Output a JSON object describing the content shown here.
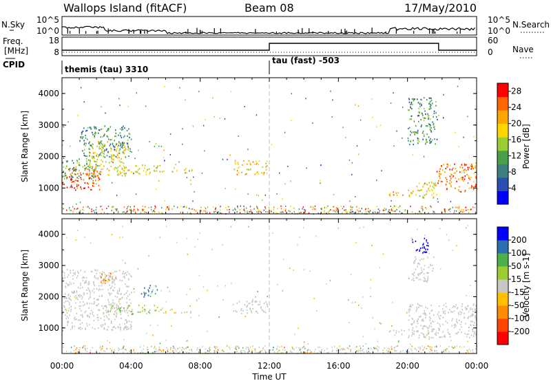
{
  "header": {
    "station": "Wallops Island (fitACF)",
    "beam": "Beam 08",
    "date": "17/May/2010"
  },
  "noise_panel": {
    "left_label": "N.Sky",
    "right_label": "N.Search",
    "left_ticks": [
      "10^5",
      "10^0"
    ],
    "right_ticks": [
      "10^5",
      "10^0"
    ]
  },
  "freq_panel": {
    "left_label_1": "Freq.",
    "left_label_2": "[MHz]",
    "right_label": "Nave",
    "left_ticks": [
      "18",
      "8"
    ],
    "right_ticks": [
      "60",
      "0"
    ]
  },
  "cpid_panel": {
    "label": "CPID",
    "modes": [
      {
        "name": "themis (tau) 3310",
        "start_hour": 0,
        "end_hour": 12
      },
      {
        "name": "tau (fast) -503",
        "start_hour": 12,
        "end_hour": 24
      }
    ],
    "freq_low_mhz": 10,
    "freq_high_mhz": 14,
    "freq_switch_hours": [
      12,
      21.8
    ]
  },
  "chart_data": [
    {
      "type": "heatmap",
      "name": "power",
      "ylabel": "Slant Range [km]",
      "xlabel": "Time UT",
      "xlim_hours": [
        0,
        24
      ],
      "ylim_km": [
        180,
        4500
      ],
      "x_ticks": [
        "00:00",
        "04:00",
        "08:00",
        "12:00",
        "16:00",
        "20:00",
        "00:00"
      ],
      "y_ticks": [
        1000,
        2000,
        3000,
        4000
      ],
      "colorbar": {
        "label": "Power [dB]",
        "ticks": [
          "4",
          "8",
          "12",
          "16",
          "20",
          "24",
          "28"
        ],
        "range": [
          0,
          30
        ],
        "colors": [
          "#0000ff",
          "#2a4fb0",
          "#3c7f7f",
          "#4aa04a",
          "#9acd32",
          "#ffd700",
          "#ffa500",
          "#ff6600",
          "#ff0000"
        ]
      },
      "echo_regions": [
        {
          "t0": 0.0,
          "t1": 2.2,
          "r0": 950,
          "r1": 1700,
          "value": 26
        },
        {
          "t0": 0.0,
          "t1": 2.0,
          "r0": 1300,
          "r1": 2000,
          "value": 12
        },
        {
          "t0": 1.5,
          "t1": 3.8,
          "r0": 1400,
          "r1": 2500,
          "value": 18
        },
        {
          "t0": 1.0,
          "t1": 4.0,
          "r0": 2000,
          "r1": 3000,
          "value": 10
        },
        {
          "t0": 3.2,
          "t1": 6.0,
          "r0": 1450,
          "r1": 1750,
          "value": 18
        },
        {
          "t0": 6.2,
          "t1": 7.5,
          "r0": 1500,
          "r1": 1650,
          "value": 16
        },
        {
          "t0": 9.9,
          "t1": 11.9,
          "r0": 1450,
          "r1": 1900,
          "value": 20
        },
        {
          "t0": 18.9,
          "t1": 19.8,
          "r0": 750,
          "r1": 950,
          "value": 22
        },
        {
          "t0": 20.0,
          "t1": 21.7,
          "r0": 700,
          "r1": 1200,
          "value": 18
        },
        {
          "t0": 20.0,
          "t1": 21.7,
          "r0": 2400,
          "r1": 3900,
          "value": 10
        },
        {
          "t0": 21.6,
          "t1": 24.0,
          "r0": 900,
          "r1": 1800,
          "value": 24
        }
      ]
    },
    {
      "type": "heatmap",
      "name": "velocity",
      "ylabel": "Slant Range [km]",
      "xlabel": "Time UT",
      "xlim_hours": [
        0,
        24
      ],
      "ylim_km": [
        180,
        4500
      ],
      "x_ticks": [
        "00:00",
        "04:00",
        "08:00",
        "12:00",
        "16:00",
        "20:00",
        "00:00"
      ],
      "y_ticks": [
        1000,
        2000,
        3000,
        4000
      ],
      "colorbar": {
        "label": "Velocity [m s-1]",
        "ticks": [
          "200",
          "100",
          "50",
          "15",
          "-15",
          "-50",
          "-100",
          "-200"
        ],
        "range": [
          -250,
          250
        ],
        "ground_scatter_color": "#c8c8c0",
        "colors": [
          "#ff0000",
          "#ff4500",
          "#ff8c00",
          "#ffc000",
          "#c8c8c0",
          "#9acd32",
          "#4ab04a",
          "#2a6fb0",
          "#0000ff"
        ]
      },
      "echo_regions": [
        {
          "t0": 0.0,
          "t1": 4.0,
          "r0": 950,
          "r1": 2900,
          "value": "gs"
        },
        {
          "t0": 2.5,
          "t1": 5.5,
          "r0": 1450,
          "r1": 1750,
          "value": 60
        },
        {
          "t0": 5.5,
          "t1": 7.5,
          "r0": 1500,
          "r1": 1650,
          "value": -40
        },
        {
          "t0": 4.5,
          "t1": 5.5,
          "r0": 2000,
          "r1": 2400,
          "value": 150
        },
        {
          "t0": 2.2,
          "t1": 2.8,
          "r0": 2400,
          "r1": 2800,
          "value": -120
        },
        {
          "t0": 9.9,
          "t1": 11.9,
          "r0": 1450,
          "r1": 1900,
          "value": "gs"
        },
        {
          "t0": 18.9,
          "t1": 19.8,
          "r0": 750,
          "r1": 950,
          "value": "gs"
        },
        {
          "t0": 20.0,
          "t1": 24.0,
          "r0": 700,
          "r1": 1800,
          "value": "gs"
        },
        {
          "t0": 20.2,
          "t1": 21.2,
          "r0": 3400,
          "r1": 3900,
          "value": 220
        },
        {
          "t0": 20.2,
          "t1": 21.5,
          "r0": 2500,
          "r1": 3300,
          "value": "gs"
        }
      ]
    }
  ]
}
